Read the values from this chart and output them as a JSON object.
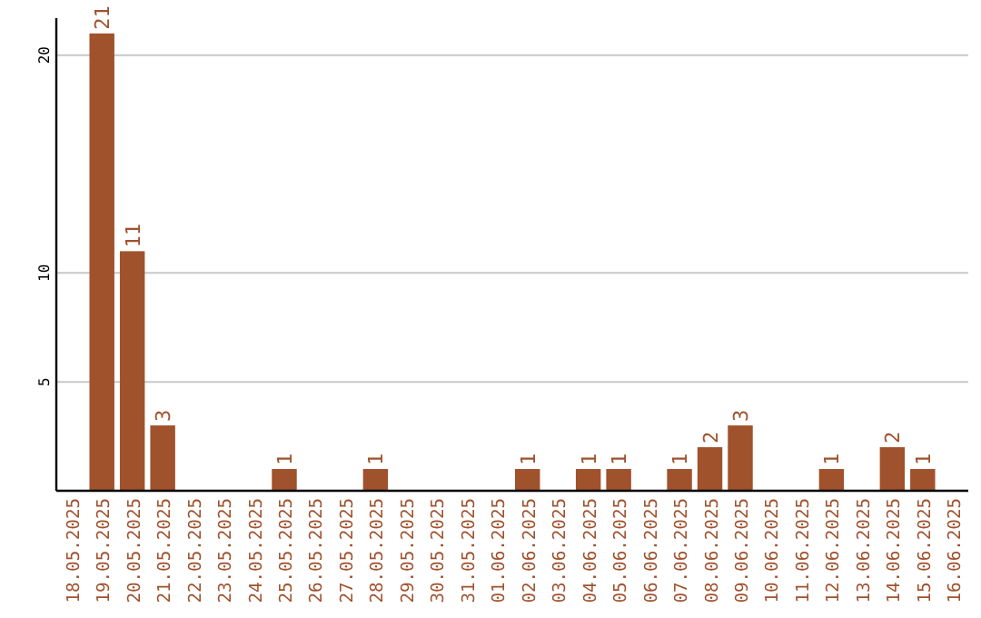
{
  "chart_data": {
    "type": "bar",
    "categories": [
      "18.05.2025",
      "19.05.2025",
      "20.05.2025",
      "21.05.2025",
      "22.05.2025",
      "23.05.2025",
      "24.05.2025",
      "25.05.2025",
      "26.05.2025",
      "27.05.2025",
      "28.05.2025",
      "29.05.2025",
      "30.05.2025",
      "31.05.2025",
      "01.06.2025",
      "02.06.2025",
      "03.06.2025",
      "04.06.2025",
      "05.06.2025",
      "06.06.2025",
      "07.06.2025",
      "08.06.2025",
      "09.06.2025",
      "10.06.2025",
      "11.06.2025",
      "12.06.2025",
      "13.06.2025",
      "14.06.2025",
      "15.06.2025",
      "16.06.2025"
    ],
    "values": [
      null,
      21,
      11,
      3,
      null,
      null,
      null,
      1,
      null,
      null,
      1,
      null,
      null,
      null,
      null,
      1,
      null,
      1,
      1,
      null,
      1,
      2,
      3,
      null,
      null,
      1,
      null,
      2,
      1,
      null
    ],
    "color": "#a0522d",
    "ylim": [
      0,
      21.7
    ],
    "yticks": [
      5,
      10,
      20
    ],
    "grid": "y",
    "data_labels": true
  }
}
